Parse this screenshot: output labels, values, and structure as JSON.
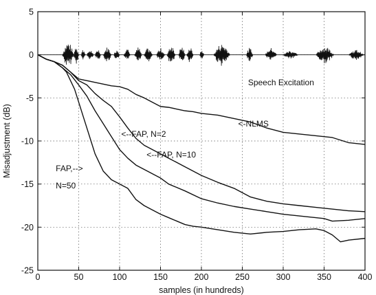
{
  "chart_data": {
    "type": "line",
    "title": "",
    "xlabel": "samples (in hundreds)",
    "ylabel": "Misadjustment (dB)",
    "xlim": [
      0,
      400
    ],
    "ylim": [
      -25,
      5
    ],
    "xticks": [
      0,
      50,
      100,
      150,
      200,
      250,
      300,
      350,
      400
    ],
    "yticks": [
      5,
      0,
      -5,
      -10,
      -15,
      -20,
      -25
    ],
    "grid": true,
    "gridStyle": "dotted",
    "lineColor": "#111111",
    "series": [
      {
        "name": "NLMS",
        "x": [
          0,
          10,
          20,
          30,
          40,
          50,
          60,
          70,
          80,
          90,
          100,
          110,
          120,
          130,
          140,
          150,
          160,
          170,
          180,
          190,
          200,
          220,
          240,
          260,
          280,
          300,
          320,
          340,
          360,
          380,
          400
        ],
        "y": [
          0,
          -0.5,
          -0.8,
          -1.2,
          -2.0,
          -2.8,
          -3.0,
          -3.2,
          -3.4,
          -3.6,
          -3.7,
          -4.0,
          -4.6,
          -5.0,
          -5.5,
          -6.0,
          -6.1,
          -6.3,
          -6.5,
          -6.6,
          -6.8,
          -7.0,
          -7.4,
          -7.8,
          -8.5,
          -9.0,
          -9.2,
          -9.4,
          -9.6,
          -10.2,
          -10.4
        ]
      },
      {
        "name": "FAP, N=2",
        "x": [
          0,
          10,
          20,
          30,
          40,
          50,
          60,
          70,
          80,
          90,
          100,
          110,
          120,
          130,
          140,
          150,
          160,
          180,
          200,
          220,
          240,
          260,
          280,
          300,
          320,
          340,
          360,
          380,
          400
        ],
        "y": [
          0,
          -0.5,
          -0.8,
          -1.2,
          -2.0,
          -3.0,
          -3.5,
          -4.5,
          -5.3,
          -6.0,
          -7.2,
          -8.5,
          -9.7,
          -10.5,
          -11.0,
          -11.5,
          -12.0,
          -13.0,
          -14.0,
          -14.8,
          -15.5,
          -16.5,
          -17.0,
          -17.3,
          -17.5,
          -17.7,
          -17.9,
          -18.1,
          -18.2
        ]
      },
      {
        "name": "FAP, N=10",
        "x": [
          0,
          10,
          20,
          30,
          40,
          50,
          60,
          70,
          80,
          90,
          100,
          110,
          120,
          130,
          140,
          150,
          160,
          180,
          200,
          220,
          240,
          260,
          280,
          300,
          320,
          340,
          350,
          360,
          380,
          400
        ],
        "y": [
          0,
          -0.5,
          -0.8,
          -1.5,
          -2.3,
          -3.5,
          -4.8,
          -6.5,
          -8.0,
          -9.5,
          -11.0,
          -12.0,
          -12.8,
          -13.3,
          -13.8,
          -14.3,
          -15.0,
          -15.8,
          -16.7,
          -17.2,
          -17.6,
          -17.9,
          -18.2,
          -18.5,
          -18.7,
          -18.9,
          -19.0,
          -19.3,
          -19.2,
          -19.0
        ]
      },
      {
        "name": "FAP, N=50",
        "x": [
          0,
          10,
          20,
          30,
          35,
          40,
          45,
          50,
          55,
          60,
          65,
          70,
          75,
          80,
          85,
          90,
          100,
          110,
          120,
          130,
          140,
          150,
          160,
          170,
          180,
          190,
          200,
          220,
          240,
          260,
          280,
          300,
          320,
          340,
          350,
          360,
          365,
          370,
          380,
          400
        ],
        "y": [
          0,
          -0.5,
          -0.8,
          -1.5,
          -2.0,
          -3.0,
          -4.0,
          -5.5,
          -7.0,
          -8.5,
          -10.0,
          -11.5,
          -12.5,
          -13.5,
          -14.0,
          -14.5,
          -15.0,
          -15.5,
          -16.8,
          -17.5,
          -18.0,
          -18.5,
          -18.9,
          -19.3,
          -19.7,
          -19.9,
          -20.0,
          -20.3,
          -20.6,
          -20.8,
          -20.6,
          -20.5,
          -20.3,
          -20.2,
          -20.4,
          -20.9,
          -21.3,
          -21.7,
          -21.5,
          -21.3
        ]
      }
    ],
    "speech": {
      "label": "Speech Excitation",
      "bursts": [
        {
          "x0": 30,
          "x1": 44,
          "amp": 1.5
        },
        {
          "x0": 44,
          "x1": 50,
          "amp": 1.2
        },
        {
          "x0": 53,
          "x1": 58,
          "amp": 0.7
        },
        {
          "x0": 60,
          "x1": 68,
          "amp": 0.6
        },
        {
          "x0": 70,
          "x1": 77,
          "amp": 0.7
        },
        {
          "x0": 80,
          "x1": 90,
          "amp": 0.9
        },
        {
          "x0": 93,
          "x1": 100,
          "amp": 0.7
        },
        {
          "x0": 105,
          "x1": 113,
          "amp": 0.7
        },
        {
          "x0": 118,
          "x1": 127,
          "amp": 0.9
        },
        {
          "x0": 130,
          "x1": 140,
          "amp": 0.8
        },
        {
          "x0": 145,
          "x1": 155,
          "amp": 0.8
        },
        {
          "x0": 158,
          "x1": 168,
          "amp": 1.2
        },
        {
          "x0": 172,
          "x1": 180,
          "amp": 1.0
        },
        {
          "x0": 182,
          "x1": 190,
          "amp": 0.9
        },
        {
          "x0": 198,
          "x1": 203,
          "amp": 0.6
        },
        {
          "x0": 215,
          "x1": 235,
          "amp": 1.3
        },
        {
          "x0": 255,
          "x1": 263,
          "amp": 0.8
        },
        {
          "x0": 278,
          "x1": 292,
          "amp": 0.8
        },
        {
          "x0": 300,
          "x1": 318,
          "amp": 0.5
        },
        {
          "x0": 340,
          "x1": 362,
          "amp": 1.0
        },
        {
          "x0": 380,
          "x1": 398,
          "amp": 0.6
        }
      ]
    },
    "annotations": [
      {
        "text": "Speech Excitation",
        "x": 257,
        "y": -3.2
      },
      {
        "text": "<-NLMS",
        "x": 245,
        "y": -8.0
      },
      {
        "text": "<--FAP, N=2",
        "x": 102,
        "y": -9.2
      },
      {
        "text": "<--FAP, N=10",
        "x": 133,
        "y": -11.6
      },
      {
        "text": "FAP,-->",
        "x": 22,
        "y": -13.2
      },
      {
        "text": "N=50",
        "x": 22,
        "y": -15.2
      }
    ]
  }
}
